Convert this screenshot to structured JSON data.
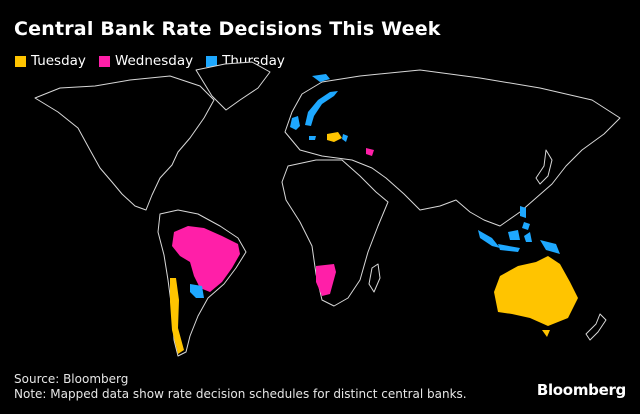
{
  "title": "Central Bank Rate Decisions This Week",
  "legend": [
    {
      "label": "Tuesday",
      "color": "#ffc400"
    },
    {
      "label": "Wednesday",
      "color": "#ff1fa8"
    },
    {
      "label": "Thursday",
      "color": "#1ea8ff"
    }
  ],
  "footer": {
    "source": "Source: Bloomberg",
    "note": "Note: Mapped data show rate decision schedules for distinct central banks."
  },
  "logo": "Bloomberg"
}
